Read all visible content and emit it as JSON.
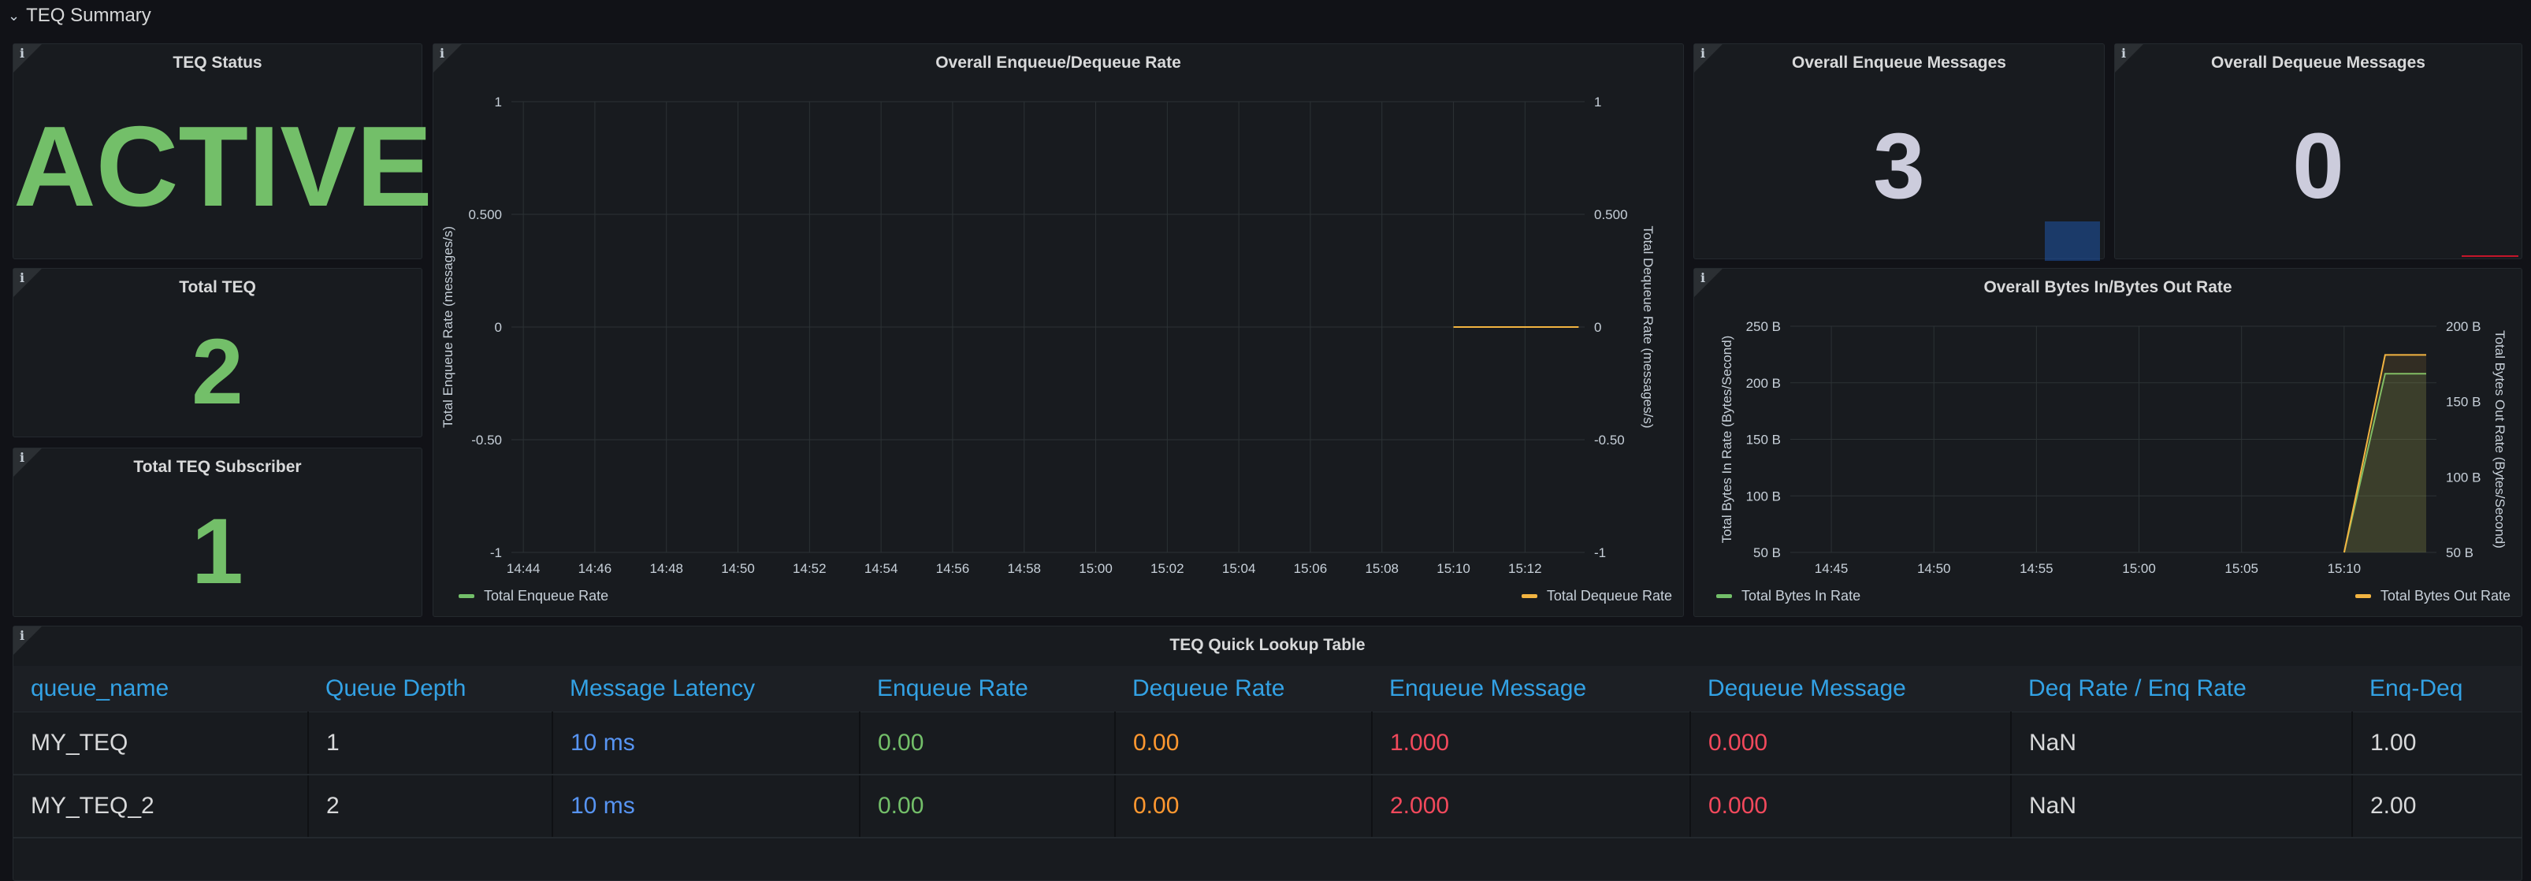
{
  "row": {
    "title": "TEQ Summary"
  },
  "info_glyph": "i",
  "panels": {
    "teq_status": {
      "title": "TEQ Status",
      "value": "ACTIVE",
      "color": "#73bf69"
    },
    "total_teq": {
      "title": "Total TEQ",
      "value": "2",
      "color": "#73bf69"
    },
    "total_subscriber": {
      "title": "Total TEQ Subscriber",
      "value": "1",
      "color": "#73bf69"
    },
    "enqueue_messages": {
      "title": "Overall Enqueue Messages",
      "value": "3",
      "color": "#ccccdc",
      "sparkline_color": "#1f60c4"
    },
    "dequeue_messages": {
      "title": "Overall Dequeue Messages",
      "value": "0",
      "color": "#ccccdc",
      "sparkline_color": "#c4162a"
    }
  },
  "chart_data": [
    {
      "type": "line",
      "title": "Overall Enqueue/Dequeue Rate",
      "xlabel": "",
      "ylabel": "Total Enqueue Rate (messages/s)",
      "ylabel_right": "Total Dequeue Rate (messages/s)",
      "x_ticks": [
        "14:44",
        "14:46",
        "14:48",
        "14:50",
        "14:52",
        "14:54",
        "14:56",
        "14:58",
        "15:00",
        "15:02",
        "15:04",
        "15:06",
        "15:08",
        "15:10",
        "15:12"
      ],
      "y_ticks": [
        "1",
        "0.500",
        "0",
        "-0.50",
        "-1"
      ],
      "y_ticks_right": [
        "1",
        "0.500",
        "0",
        "-0.50",
        "-1"
      ],
      "ylim": [
        -1,
        1
      ],
      "xlim": [
        "14:43:40",
        "15:13:40"
      ],
      "grid": true,
      "series": [
        {
          "name": "Total Enqueue Rate",
          "color": "#73bf69",
          "axis": "left",
          "x": [],
          "values": []
        },
        {
          "name": "Total Dequeue Rate",
          "color": "#f2b441",
          "axis": "right",
          "x": [
            "15:10:00",
            "15:13:30"
          ],
          "values": [
            0,
            0
          ]
        }
      ]
    },
    {
      "type": "area",
      "title": "Overall Bytes In/Bytes Out Rate",
      "xlabel": "",
      "ylabel": "Total Bytes In Rate (Bytes/Second)",
      "ylabel_right": "Total Bytes Out Rate (Bytes/Second)",
      "x_ticks": [
        "14:45",
        "14:50",
        "14:55",
        "15:00",
        "15:05",
        "15:10"
      ],
      "y_ticks": [
        "250 B",
        "200 B",
        "150 B",
        "100 B",
        "50 B"
      ],
      "y_ticks_right": [
        "200 B",
        "150 B",
        "100 B",
        "50 B"
      ],
      "ylim": [
        50,
        250
      ],
      "ylim_right": [
        50,
        200
      ],
      "xlim": [
        "14:43:00",
        "15:14:30"
      ],
      "grid": true,
      "series": [
        {
          "name": "Total Bytes In Rate",
          "color": "#73bf69",
          "axis": "left",
          "x": [
            "15:10:00",
            "15:12:00",
            "15:14:00"
          ],
          "values": [
            50,
            208,
            208
          ]
        },
        {
          "name": "Total Bytes Out Rate",
          "color": "#f2b441",
          "axis": "right",
          "x": [
            "15:10:00",
            "15:12:00",
            "15:14:00"
          ],
          "values": [
            50,
            181,
            181
          ]
        }
      ]
    }
  ],
  "table": {
    "title": "TEQ Quick Lookup Table",
    "columns": [
      "queue_name",
      "Queue Depth",
      "Message Latency",
      "Enqueue Rate",
      "Dequeue Rate",
      "Enqueue Message",
      "Dequeue Message",
      "Deq Rate / Enq Rate",
      "Enq-Deq"
    ],
    "column_colors": [
      "#d8d9da",
      "#d8d9da",
      "#5794f2",
      "#73bf69",
      "#ff9830",
      "#f2495c",
      "#f2495c",
      "#d8d9da",
      "#d8d9da"
    ],
    "rows": [
      [
        "MY_TEQ",
        "1",
        "10 ms",
        "0.00",
        "0.00",
        "1.000",
        "0.000",
        "NaN",
        "1.00"
      ],
      [
        "MY_TEQ_2",
        "2",
        "10 ms",
        "0.00",
        "0.00",
        "2.000",
        "0.000",
        "NaN",
        "2.00"
      ]
    ]
  }
}
